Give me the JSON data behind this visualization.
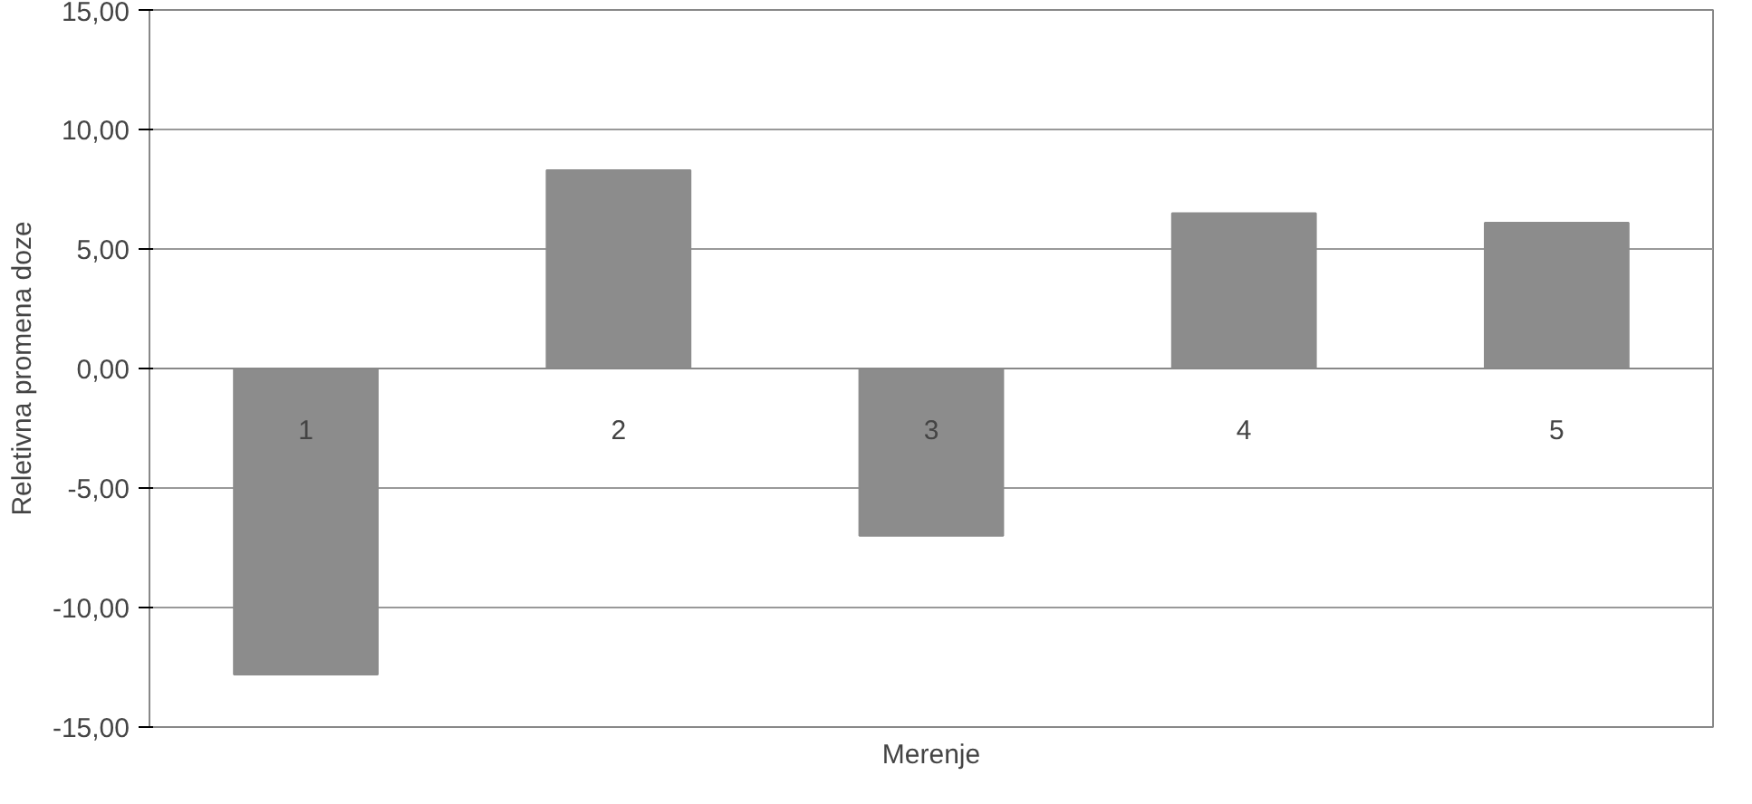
{
  "chart_data": {
    "type": "bar",
    "xlabel": "Merenje",
    "ylabel": "Reletivna promena doze",
    "categories": [
      "1",
      "2",
      "3",
      "4",
      "5"
    ],
    "values": [
      -12.8,
      8.3,
      -7.0,
      6.5,
      6.1
    ],
    "color": "#8c8c8c",
    "ylim": [
      -15,
      15
    ],
    "yticks": [
      {
        "value": -15,
        "label": "-15,00"
      },
      {
        "value": -10,
        "label": "-10,00"
      },
      {
        "value": -5,
        "label": "-5,00"
      },
      {
        "value": 0,
        "label": "0,00"
      },
      {
        "value": 5,
        "label": "5,00"
      },
      {
        "value": 10,
        "label": "10,00"
      },
      {
        "value": 15,
        "label": "15,00"
      }
    ],
    "grid": "y"
  }
}
